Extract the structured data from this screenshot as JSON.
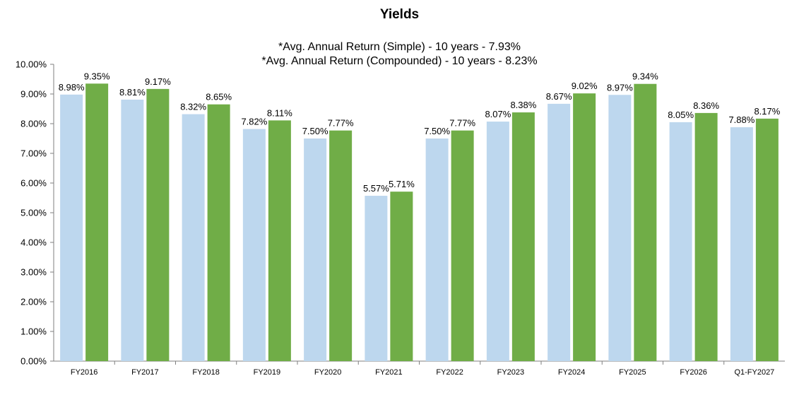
{
  "chart_data": {
    "type": "bar",
    "title": "Yields",
    "subtitles": [
      "*Avg. Annual Return (Simple) - 10 years - 7.93%",
      "*Avg. Annual Return (Compounded) - 10 years - 8.23%"
    ],
    "xlabel": "",
    "ylabel": "",
    "ylim": [
      0,
      10
    ],
    "yticks": [
      "0.00%",
      "1.00%",
      "2.00%",
      "3.00%",
      "4.00%",
      "5.00%",
      "6.00%",
      "7.00%",
      "8.00%",
      "9.00%",
      "10.00%"
    ],
    "grid": false,
    "legend": "none",
    "categories": [
      "FY2016",
      "FY2017",
      "FY2018",
      "FY2019",
      "FY2020",
      "FY2021",
      "FY2022",
      "FY2023",
      "FY2024",
      "FY2025",
      "FY2026",
      "Q1-FY2027"
    ],
    "series": [
      {
        "color": "#bdd7ee",
        "values": [
          8.98,
          8.81,
          8.32,
          7.82,
          7.5,
          5.57,
          7.5,
          8.07,
          8.67,
          8.97,
          8.05,
          7.88
        ],
        "labels": [
          "8.98%",
          "8.81%",
          "8.32%",
          "7.82%",
          "7.50%",
          "5.57%",
          "7.50%",
          "8.07%",
          "8.67%",
          "8.97%",
          "8.05%",
          "7.88%"
        ]
      },
      {
        "color": "#70ad47",
        "values": [
          9.35,
          9.17,
          8.65,
          8.11,
          7.77,
          5.71,
          7.77,
          8.38,
          9.02,
          9.34,
          8.36,
          8.17
        ],
        "labels": [
          "9.35%",
          "9.17%",
          "8.65%",
          "8.11%",
          "7.77%",
          "5.71%",
          "7.77%",
          "8.38%",
          "9.02%",
          "9.34%",
          "8.36%",
          "8.17%"
        ]
      }
    ]
  }
}
